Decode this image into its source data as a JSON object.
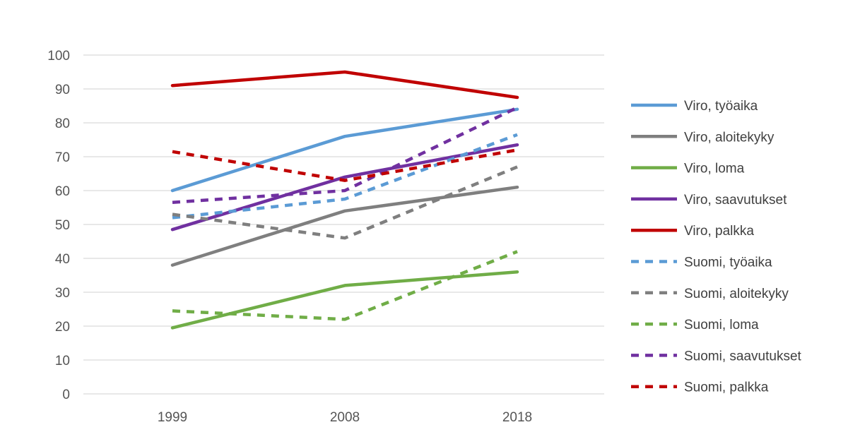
{
  "chart_data": {
    "type": "line",
    "title": "",
    "xlabel": "",
    "ylabel": "",
    "categories": [
      "1999",
      "2008",
      "2018"
    ],
    "ylim": [
      0,
      100
    ],
    "yticks": [
      0,
      10,
      20,
      30,
      40,
      50,
      60,
      70,
      80,
      90,
      100
    ],
    "grid": true,
    "legend_position": "right",
    "series": [
      {
        "name": "Viro, työaika",
        "values": [
          60,
          76,
          84
        ],
        "color": "#5b9bd5",
        "dash": false
      },
      {
        "name": "Viro, aloitekyky",
        "values": [
          38,
          54,
          61
        ],
        "color": "#7f7f7f",
        "dash": false
      },
      {
        "name": "Viro, loma",
        "values": [
          19.5,
          32,
          36
        ],
        "color": "#70ad47",
        "dash": false
      },
      {
        "name": "Viro, saavutukset",
        "values": [
          48.5,
          64,
          73.5
        ],
        "color": "#7030a0",
        "dash": false
      },
      {
        "name": "Viro, palkka",
        "values": [
          91,
          95,
          87.5
        ],
        "color": "#c00000",
        "dash": false
      },
      {
        "name": "Suomi, työaika",
        "values": [
          52,
          57.5,
          76.5
        ],
        "color": "#5b9bd5",
        "dash": true
      },
      {
        "name": "Suomi, aloitekyky",
        "values": [
          53,
          46,
          67
        ],
        "color": "#7f7f7f",
        "dash": true
      },
      {
        "name": "Suomi, loma",
        "values": [
          24.5,
          22,
          42
        ],
        "color": "#70ad47",
        "dash": true
      },
      {
        "name": "Suomi, saavutukset",
        "values": [
          56.5,
          60,
          84.5
        ],
        "color": "#7030a0",
        "dash": true
      },
      {
        "name": "Suomi, palkka",
        "values": [
          71.5,
          63,
          72
        ],
        "color": "#c00000",
        "dash": true
      }
    ]
  }
}
